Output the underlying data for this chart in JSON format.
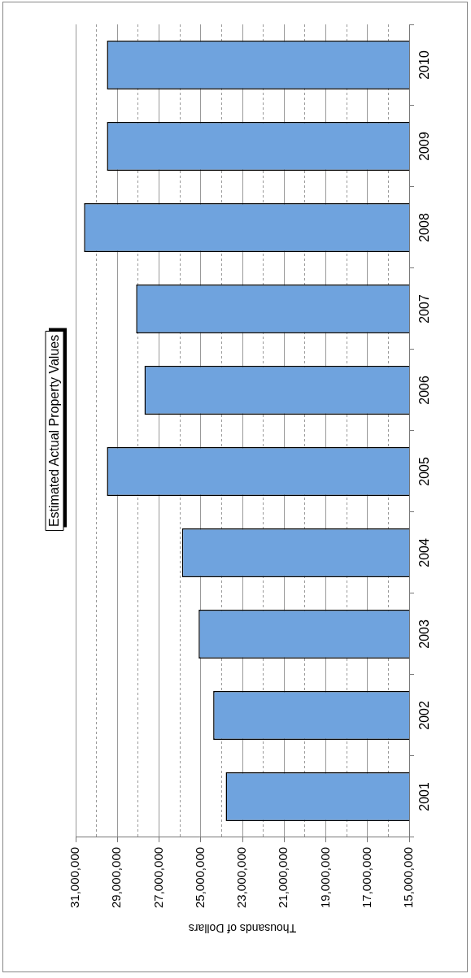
{
  "chart_data": {
    "type": "bar",
    "orientation": "horizontal",
    "title": "Estimated Actual Property Values",
    "xlabel": "Thousands of Dollars",
    "categories": [
      "2010",
      "2009",
      "2008",
      "2007",
      "2006",
      "2005",
      "2004",
      "2003",
      "2002",
      "2001"
    ],
    "values": [
      29500000,
      29500000,
      30600000,
      28100000,
      27700000,
      29500000,
      25900000,
      25100000,
      24400000,
      23800000
    ],
    "color": "#6fa3de",
    "xlim": [
      31000000,
      15000000
    ],
    "xticks": [
      {
        "value": 31000000,
        "label": "31,000,000"
      },
      {
        "value": 30000000,
        "label": null
      },
      {
        "value": 29000000,
        "label": "29,000,000"
      },
      {
        "value": 28000000,
        "label": null
      },
      {
        "value": 27000000,
        "label": "27,000,000"
      },
      {
        "value": 26000000,
        "label": null
      },
      {
        "value": 25000000,
        "label": "25,000,000"
      },
      {
        "value": 24000000,
        "label": null
      },
      {
        "value": 23000000,
        "label": "23,000,000"
      },
      {
        "value": 22000000,
        "label": null
      },
      {
        "value": 21000000,
        "label": "21,000,000"
      },
      {
        "value": 20000000,
        "label": null
      },
      {
        "value": 19000000,
        "label": "19,000,000"
      },
      {
        "value": 18000000,
        "label": null
      },
      {
        "value": 17000000,
        "label": "17,000,000"
      },
      {
        "value": 16000000,
        "label": null
      },
      {
        "value": 15000000,
        "label": "15,000,000"
      }
    ],
    "grid": "x",
    "legend": false
  }
}
